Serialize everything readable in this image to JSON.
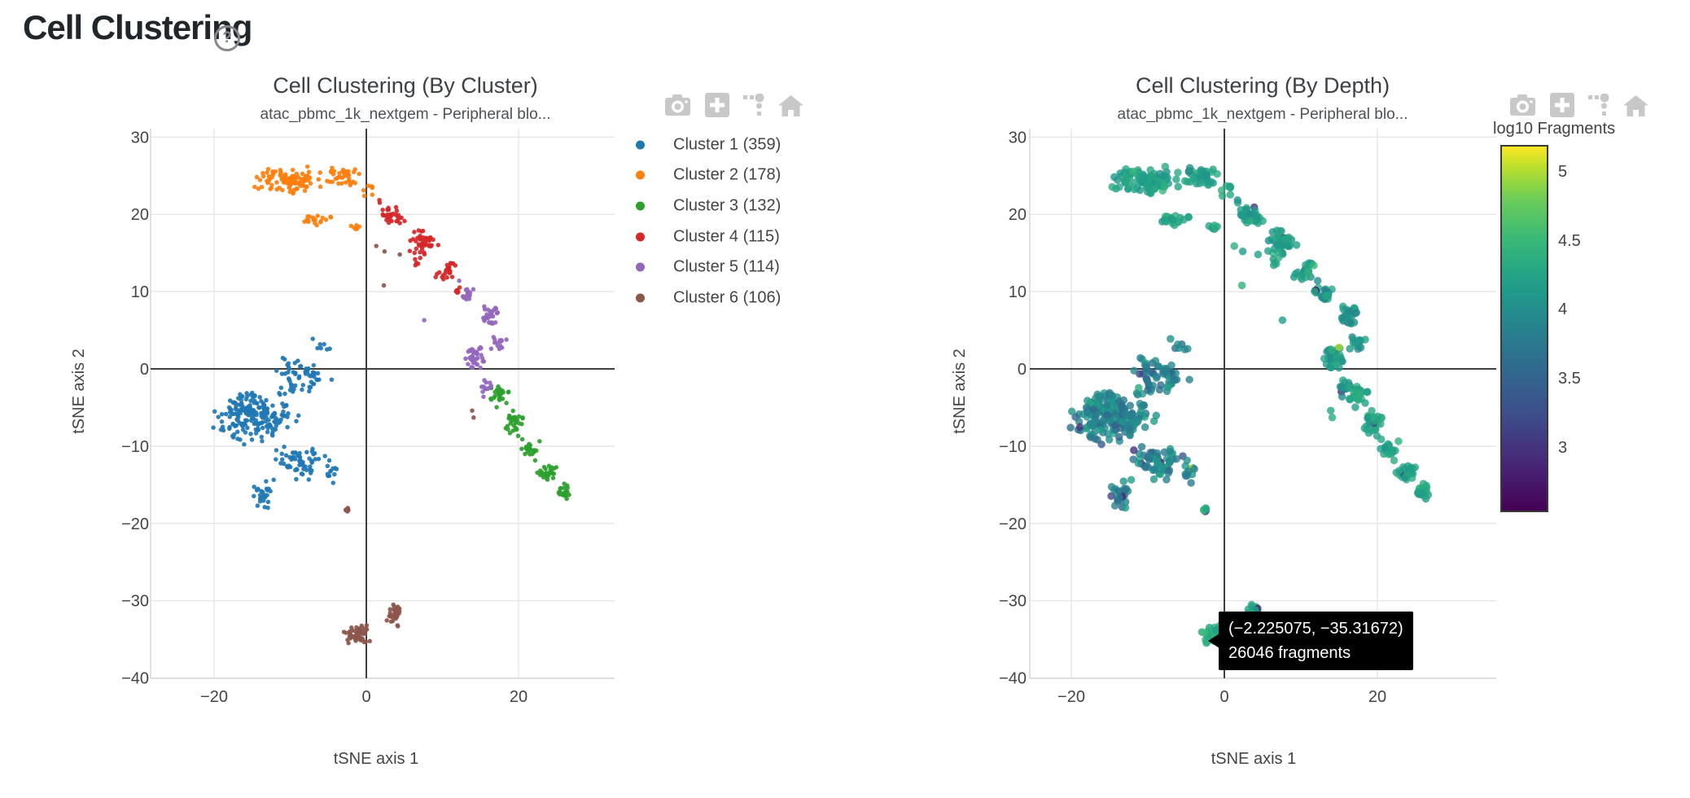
{
  "header": {
    "title": "Cell Clustering",
    "help_icon_label": "?"
  },
  "panels": [
    {
      "id": "by-cluster",
      "toolbar": [
        "camera-icon",
        "zoom-in-icon",
        "select-dots-icon",
        "home-icon"
      ]
    },
    {
      "id": "by-depth",
      "toolbar": [
        "camera-icon",
        "zoom-in-icon",
        "select-dots-icon",
        "home-icon"
      ]
    }
  ],
  "style": {
    "grid_color": "#e8e8e8",
    "zeroline_color": "#3f3f3f",
    "axis_edge_color": "#d9d9d9",
    "tick_label_color": "#444444",
    "toolbar_icon_color": "#c8c8c8",
    "tooltip_bg": "#000000",
    "tooltip_text": "#ffffff"
  },
  "chart_data": [
    {
      "type": "scatter",
      "title": "Cell Clustering (By Cluster)",
      "subtitle": "atac_pbmc_1k_nextgem - Peripheral blo...",
      "xlabel": "tSNE axis 1",
      "ylabel": "tSNE axis 2",
      "xlim": [
        -28.3,
        32.6
      ],
      "ylim": [
        -40.1,
        31.1
      ],
      "x_ticks": [
        -20,
        0,
        20
      ],
      "y_ticks": [
        30,
        20,
        10,
        0,
        -10,
        -20,
        -30,
        -40
      ],
      "grid": true,
      "zerolines": true,
      "legend_position": "right",
      "marker_size": 5.5,
      "series": [
        {
          "name": "Cluster 1 (359)",
          "color": "#1f77b4",
          "count": 359,
          "blobs": [
            [
              -15,
              -6,
              7,
              4.5,
              200
            ],
            [
              -8,
              -1,
              4.5,
              3,
              55
            ],
            [
              -9,
              -12,
              4.5,
              3,
              60
            ],
            [
              -13.5,
              -16.5,
              2,
              2.5,
              25
            ],
            [
              -4.5,
              -13.5,
              1.5,
              2.5,
              12
            ],
            [
              -6,
              3,
              2,
              1.5,
              7
            ]
          ],
          "outliers": []
        },
        {
          "name": "Cluster 2 (178)",
          "color": "#ff7f0e",
          "count": 178,
          "blobs": [
            [
              -10,
              24.3,
              6.5,
              2.2,
              110
            ],
            [
              -3,
              25,
              3,
              2,
              35
            ],
            [
              -6.5,
              19.3,
              3.5,
              1.2,
              20
            ],
            [
              -1.5,
              18.4,
              1,
              0.7,
              6
            ],
            [
              0.3,
              23,
              1.5,
              2,
              7
            ]
          ],
          "outliers": []
        },
        {
          "name": "Cluster 3 (132)",
          "color": "#2ca02c",
          "count": 132,
          "blobs": [
            [
              17.5,
              -3.5,
              1.8,
              1.8,
              25
            ],
            [
              19.5,
              -7,
              1.8,
              2.2,
              30
            ],
            [
              21.5,
              -10.5,
              1.8,
              1.8,
              25
            ],
            [
              24,
              -13.5,
              2,
              1.8,
              30
            ],
            [
              25.8,
              -16,
              1.8,
              1.3,
              22
            ]
          ],
          "outliers": []
        },
        {
          "name": "Cluster 4 (115)",
          "color": "#d62728",
          "count": 115,
          "blobs": [
            [
              3.5,
              19.8,
              2.2,
              1.8,
              30
            ],
            [
              7.5,
              16.5,
              2.5,
              2.3,
              45
            ],
            [
              10.5,
              12.5,
              1.8,
              1.8,
              25
            ],
            [
              6.8,
              13.9,
              0.9,
              0.9,
              5
            ],
            [
              12,
              9.9,
              1.1,
              0.9,
              8
            ],
            [
              1.5,
              21.8,
              1,
              1,
              2
            ]
          ],
          "outliers": []
        },
        {
          "name": "Cluster 5 (114)",
          "color": "#9467bd",
          "count": 114,
          "blobs": [
            [
              13.2,
              9.4,
              1.4,
              1.4,
              18
            ],
            [
              16.4,
              7,
              1.5,
              1.9,
              28
            ],
            [
              17.4,
              3.4,
              1.2,
              1.5,
              14
            ],
            [
              14.3,
              1.4,
              1.6,
              2.4,
              38
            ],
            [
              15.6,
              -2.6,
              1.3,
              1.6,
              14
            ]
          ],
          "outliers": [
            [
              7.6,
              6.3
            ],
            [
              12.2,
              11.4
            ]
          ]
        },
        {
          "name": "Cluster 6 (106)",
          "color": "#8c564b",
          "count": 106,
          "blobs": [
            [
              -1.3,
              -34.4,
              2.0,
              1.6,
              56
            ],
            [
              3.7,
              -31.8,
              1.4,
              2.0,
              38
            ],
            [
              -2.6,
              -18.2,
              0.6,
              0.45,
              6
            ]
          ],
          "outliers": [
            [
              1.3,
              15.9
            ],
            [
              2.4,
              15.2
            ],
            [
              2.3,
              10.8
            ],
            [
              13.9,
              -5.4
            ],
            [
              14.1,
              -6.3
            ],
            [
              4.4,
              14.8
            ]
          ]
        }
      ]
    },
    {
      "type": "scatter",
      "title": "Cell Clustering (By Depth)",
      "subtitle": "atac_pbmc_1k_nextgem - Peripheral blo...",
      "xlabel": "tSNE axis 1",
      "ylabel": "tSNE axis 2",
      "xlim": [
        -25.4,
        35.5
      ],
      "ylim": [
        -40.1,
        31.1
      ],
      "x_ticks": [
        -20,
        0,
        20
      ],
      "y_ticks": [
        30,
        20,
        10,
        0,
        -10,
        -20,
        -30,
        -40
      ],
      "grid": true,
      "zerolines": true,
      "points_shared_with_chart": 0,
      "marker_size": 9.5,
      "marker_opacity": 0.8,
      "colorbar": {
        "title": "log10 Fragments",
        "ticks": [
          5,
          4.5,
          4,
          3.5,
          3
        ],
        "top_value": 5.2,
        "bottom_value": 2.56,
        "colormap": "viridis"
      },
      "depth_means_by_cluster": [
        3.9,
        4.25,
        4.3,
        4.22,
        4.15,
        4.3
      ],
      "depth_sds_by_cluster": [
        0.28,
        0.14,
        0.12,
        0.16,
        0.2,
        0.15
      ],
      "hover_tooltip": {
        "coords": "(−2.225075, −35.31672)",
        "label": "26046 fragments",
        "point_xy": [
          -2.225075,
          -35.31672
        ],
        "point_depth": 4.4158
      }
    }
  ]
}
